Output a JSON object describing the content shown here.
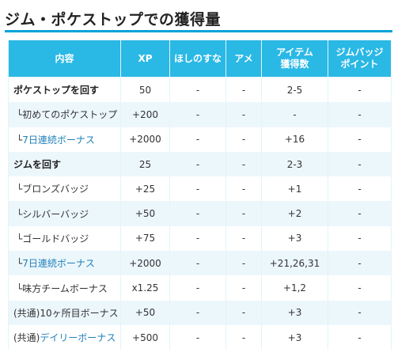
{
  "title": "ジム・ポケストップでの獲得量",
  "columns": [
    "内容",
    "XP",
    "ほしのすな",
    "アメ",
    "アイテム\n獲得数",
    "ジムバッジ\nポイント"
  ],
  "rows": [
    {
      "label": "ポケストップを回す",
      "xp": "50",
      "stardust": "-",
      "candy": "-",
      "items": "2-5",
      "badge": "-"
    },
    {
      "label": "└初めてのポケストップ",
      "xp": "+200",
      "stardust": "-",
      "candy": "-",
      "items": "-",
      "badge": "-"
    },
    {
      "label_prefix": "└",
      "label_link": "7日連続ボーナス",
      "xp": "+2000",
      "stardust": "-",
      "candy": "-",
      "items": "+16",
      "badge": "-"
    },
    {
      "label": "ジムを回す",
      "xp": "25",
      "stardust": "-",
      "candy": "-",
      "items": "2-3",
      "badge": "-"
    },
    {
      "label": "└ブロンズバッジ",
      "xp": "+25",
      "stardust": "-",
      "candy": "-",
      "items": "+1",
      "badge": "-"
    },
    {
      "label": "└シルバーバッジ",
      "xp": "+50",
      "stardust": "-",
      "candy": "-",
      "items": "+2",
      "badge": "-"
    },
    {
      "label": "└ゴールドバッジ",
      "xp": "+75",
      "stardust": "-",
      "candy": "-",
      "items": "+3",
      "badge": "-"
    },
    {
      "label_prefix": "└",
      "label_link": "7日連続ボーナス",
      "xp": "+2000",
      "stardust": "-",
      "candy": "-",
      "items": "+21,26,31",
      "badge": "-"
    },
    {
      "label": "└味方チームボーナス",
      "xp": "x1.25",
      "stardust": "-",
      "candy": "-",
      "items": "+1,2",
      "badge": "-"
    },
    {
      "label": "(共通)10ヶ所目ボーナス",
      "xp": "+50",
      "stardust": "-",
      "candy": "-",
      "items": "+3",
      "badge": "-"
    },
    {
      "label_prefix": "(共通)",
      "label_link": "デイリーボーナス",
      "xp": "+500",
      "stardust": "-",
      "candy": "-",
      "items": "+3",
      "badge": "-"
    }
  ],
  "colors": {
    "accent": "#00a3d9",
    "header_bg": "#2ab8e5",
    "stripe": "#ecf7fc",
    "link": "#1e7fb8"
  }
}
